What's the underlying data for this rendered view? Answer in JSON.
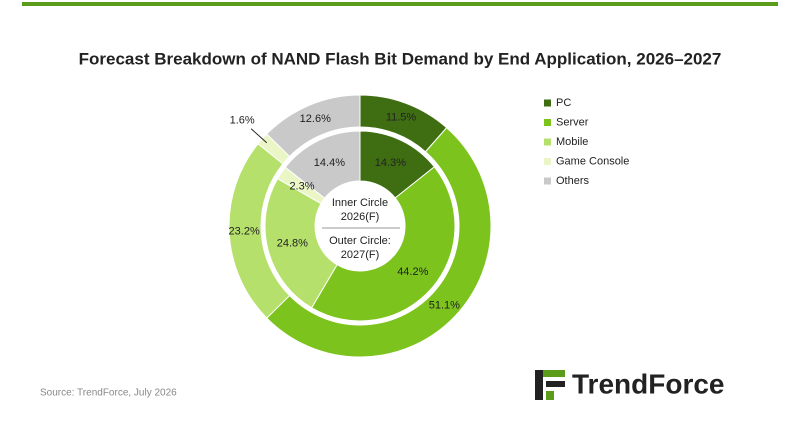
{
  "chart_data": {
    "type": "donut",
    "title": "Forecast Breakdown of NAND Flash Bit Demand by End Application, 2026–2027",
    "categories": [
      "PC",
      "Server",
      "Mobile",
      "Game Console",
      "Others"
    ],
    "colors": [
      "#3f6e12",
      "#7cc31e",
      "#b6e06c",
      "#eaf6c6",
      "#c9c9c9"
    ],
    "series": [
      {
        "values": [
          14.3,
          44.2,
          24.8,
          2.3,
          14.4
        ],
        "value_labels": [
          "14.3%",
          "44.2%",
          "24.8%",
          "2.3%",
          "14.4%"
        ]
      },
      {
        "values": [
          11.5,
          51.1,
          23.2,
          1.6,
          12.6
        ],
        "value_labels": [
          "11.5%",
          "51.1%",
          "23.2%",
          "1.6%",
          "12.6%"
        ]
      }
    ],
    "center_labels": [
      [
        "Inner Circle",
        "2026(F)"
      ],
      [
        "Outer Circle:",
        "2027(F)"
      ]
    ],
    "legend": "right",
    "source": "Source: TrendForce, July 2026",
    "logo": "TrendForce"
  }
}
